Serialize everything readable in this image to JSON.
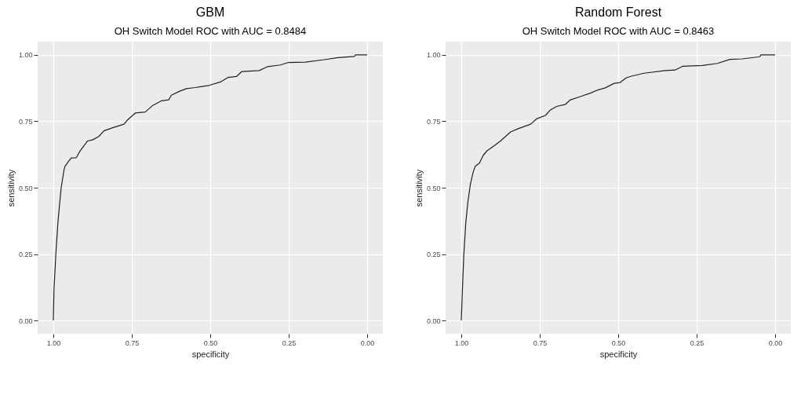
{
  "chart_data": [
    {
      "type": "line",
      "title": "GBM",
      "subtitle": "OH Switch Model ROC with AUC = 0.8484",
      "xlabel": "specificity",
      "ylabel": "sensitivity",
      "grid": true,
      "x": [
        1,
        0.998,
        0.992,
        0.986,
        0.98,
        0.975,
        0.966,
        0.963,
        0.951,
        0.943,
        0.927,
        0.915,
        0.891,
        0.875,
        0.855,
        0.839,
        0.811,
        0.775,
        0.763,
        0.739,
        0.707,
        0.683,
        0.656,
        0.632,
        0.624,
        0.596,
        0.576,
        0.548,
        0.504,
        0.468,
        0.444,
        0.416,
        0.4,
        0.344,
        0.317,
        0.277,
        0.253,
        0.197,
        0.137,
        0.093,
        0.041,
        0.037,
        0
      ],
      "series": [
        {
          "color": "#222222",
          "values": [
            0,
            0.115,
            0.25,
            0.36,
            0.44,
            0.5,
            0.567,
            0.58,
            0.6,
            0.612,
            0.613,
            0.638,
            0.676,
            0.68,
            0.693,
            0.714,
            0.726,
            0.739,
            0.756,
            0.781,
            0.785,
            0.81,
            0.827,
            0.831,
            0.848,
            0.864,
            0.873,
            0.877,
            0.885,
            0.898,
            0.915,
            0.919,
            0.937,
            0.941,
            0.956,
            0.962,
            0.971,
            0.973,
            0.982,
            0.99,
            0.994,
            1,
            1
          ]
        }
      ],
      "xlim": [
        1.05,
        -0.05
      ],
      "ylim": [
        -0.05,
        1.05
      ],
      "xticks": [
        {
          "value": 1,
          "label": "1.00"
        },
        {
          "value": 0.75,
          "label": "0.75"
        },
        {
          "value": 0.5,
          "label": "0.50"
        },
        {
          "value": 0.25,
          "label": "0.25"
        },
        {
          "value": 0,
          "label": "0.00"
        }
      ],
      "yticks": [
        {
          "value": 0,
          "label": "0.00"
        },
        {
          "value": 0.25,
          "label": "0.25"
        },
        {
          "value": 0.5,
          "label": "0.50"
        },
        {
          "value": 0.75,
          "label": "0.75"
        },
        {
          "value": 1,
          "label": "1.00"
        }
      ]
    },
    {
      "type": "line",
      "title": "Random Forest",
      "subtitle": "OH Switch Model ROC with AUC = 0.8463",
      "xlabel": "specificity",
      "ylabel": "sensitivity",
      "grid": true,
      "x": [
        1,
        0.996,
        0.992,
        0.986,
        0.979,
        0.971,
        0.963,
        0.956,
        0.942,
        0.93,
        0.918,
        0.894,
        0.875,
        0.859,
        0.843,
        0.819,
        0.779,
        0.759,
        0.732,
        0.716,
        0.696,
        0.668,
        0.652,
        0.621,
        0.589,
        0.565,
        0.541,
        0.513,
        0.494,
        0.474,
        0.458,
        0.418,
        0.351,
        0.319,
        0.295,
        0.232,
        0.184,
        0.144,
        0.105,
        0.049,
        0.045,
        0
      ],
      "series": [
        {
          "color": "#222222",
          "values": [
            0,
            0.129,
            0.246,
            0.363,
            0.447,
            0.513,
            0.555,
            0.58,
            0.593,
            0.622,
            0.639,
            0.659,
            0.676,
            0.693,
            0.71,
            0.722,
            0.739,
            0.76,
            0.772,
            0.793,
            0.806,
            0.814,
            0.831,
            0.843,
            0.856,
            0.868,
            0.876,
            0.893,
            0.896,
            0.914,
            0.92,
            0.931,
            0.941,
            0.943,
            0.957,
            0.96,
            0.968,
            0.983,
            0.985,
            0.993,
            1,
            1
          ]
        }
      ],
      "xlim": [
        1.05,
        -0.05
      ],
      "ylim": [
        -0.05,
        1.05
      ],
      "xticks": [
        {
          "value": 1,
          "label": "1.00"
        },
        {
          "value": 0.75,
          "label": "0.75"
        },
        {
          "value": 0.5,
          "label": "0.50"
        },
        {
          "value": 0.25,
          "label": "0.25"
        },
        {
          "value": 0,
          "label": "0.00"
        }
      ],
      "yticks": [
        {
          "value": 0,
          "label": "0.00"
        },
        {
          "value": 0.25,
          "label": "0.25"
        },
        {
          "value": 0.5,
          "label": "0.50"
        },
        {
          "value": 0.75,
          "label": "0.75"
        },
        {
          "value": 1,
          "label": "1.00"
        }
      ]
    }
  ]
}
